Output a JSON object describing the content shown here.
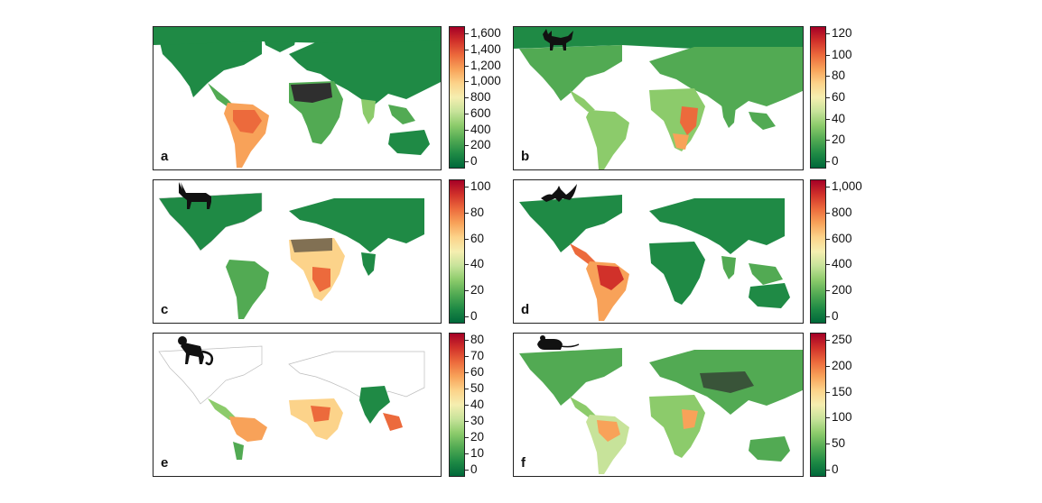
{
  "colors": {
    "scale": [
      "#00683a",
      "#1f8a45",
      "#52aa53",
      "#8ccb6b",
      "#c7e39a",
      "#f5eeb0",
      "#fcd38a",
      "#f8a259",
      "#ec6a3c",
      "#d1312a",
      "#a50026"
    ],
    "land_outline": "#bdbdbd",
    "hatch": "#2f2f2f"
  },
  "panels": [
    {
      "letter": "a",
      "silhouette_icon": "none",
      "colorbar": {
        "ticks": [
          "1,600",
          "1,400",
          "1,200",
          "1,000",
          "800",
          "600",
          "400",
          "200",
          "0"
        ]
      }
    },
    {
      "letter": "b",
      "silhouette_icon": "fox-icon",
      "colorbar": {
        "ticks": [
          "120",
          "100",
          "80",
          "60",
          "40",
          "20",
          "0"
        ]
      }
    },
    {
      "letter": "c",
      "silhouette_icon": "antelope-icon",
      "colorbar": {
        "ticks": [
          "100",
          "80",
          "60",
          "40",
          "20",
          "0"
        ]
      }
    },
    {
      "letter": "d",
      "silhouette_icon": "bat-icon",
      "colorbar": {
        "ticks": [
          "1,000",
          "800",
          "600",
          "400",
          "200",
          "0"
        ]
      }
    },
    {
      "letter": "e",
      "silhouette_icon": "monkey-icon",
      "colorbar": {
        "ticks": [
          "80",
          "70",
          "60",
          "50",
          "40",
          "30",
          "20",
          "10",
          "0"
        ]
      }
    },
    {
      "letter": "f",
      "silhouette_icon": "rodent-icon",
      "colorbar": {
        "ticks": [
          "250",
          "200",
          "150",
          "100",
          "50",
          "0"
        ]
      }
    }
  ]
}
